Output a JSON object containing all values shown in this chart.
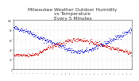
{
  "title": "Milwaukee Weather Outdoor Humidity\nvs Temperature\nEvery 5 Minutes",
  "title_fontsize": 4.2,
  "title_color": "#333333",
  "bg_color": "#ffffff",
  "plot_bg_color": "#ffffff",
  "grid_color": "#cccccc",
  "blue_color": "#0000cc",
  "red_color": "#cc0000",
  "point_size": 0.4,
  "xlim": [
    0,
    288
  ],
  "ylim": [
    0,
    100
  ],
  "n_points": 288,
  "seed": 42
}
